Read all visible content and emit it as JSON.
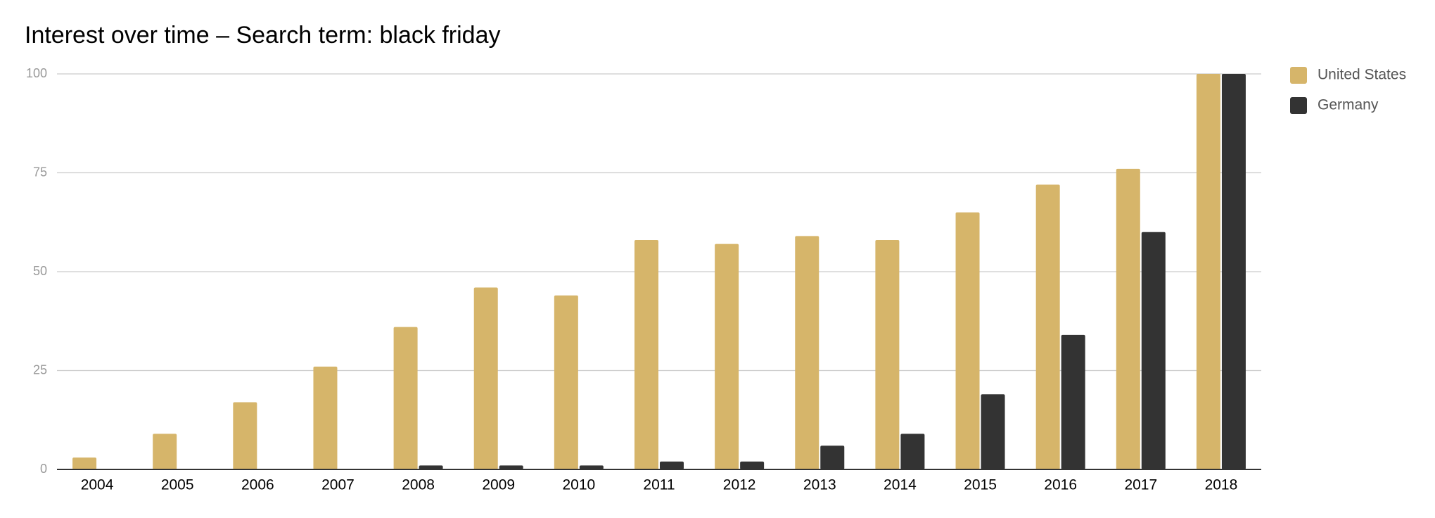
{
  "chart_data": {
    "type": "bar",
    "title": "Interest over time – Search term: black friday",
    "categories": [
      "2004",
      "2005",
      "2006",
      "2007",
      "2008",
      "2009",
      "2010",
      "2011",
      "2012",
      "2013",
      "2014",
      "2015",
      "2016",
      "2017",
      "2018"
    ],
    "series": [
      {
        "name": "United States",
        "color": "#d6b56a",
        "values": [
          3,
          9,
          17,
          26,
          36,
          46,
          44,
          58,
          57,
          59,
          58,
          65,
          72,
          76,
          100
        ]
      },
      {
        "name": "Germany",
        "color": "#333333",
        "values": [
          0,
          0,
          0,
          0,
          1,
          1,
          1,
          2,
          2,
          6,
          9,
          19,
          34,
          60,
          100
        ]
      }
    ],
    "ylim": [
      0,
      100
    ],
    "yticks": [
      0,
      25,
      50,
      75,
      100
    ],
    "grid": true,
    "legend": "right"
  }
}
